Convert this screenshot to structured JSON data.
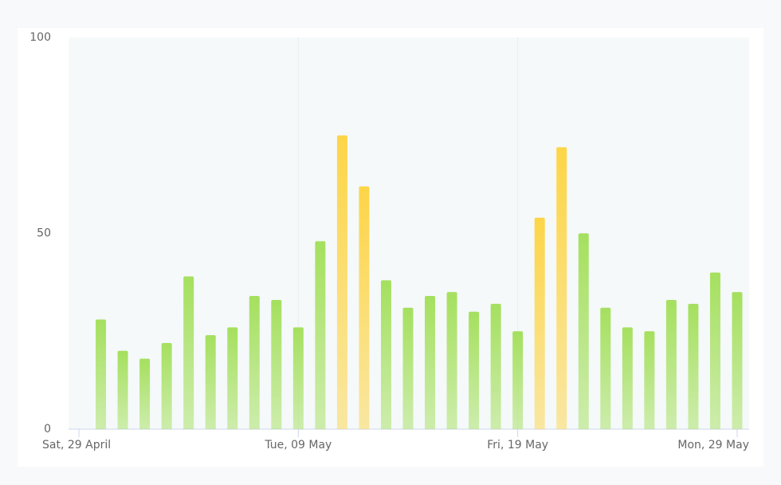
{
  "chart_data": {
    "type": "bar",
    "x": [
      "04-30",
      "05-01",
      "05-02",
      "05-03",
      "05-04",
      "05-05",
      "05-06",
      "05-07",
      "05-08",
      "05-09",
      "05-10",
      "05-11",
      "05-12",
      "05-13",
      "05-14",
      "05-15",
      "05-16",
      "05-17",
      "05-18",
      "05-19",
      "05-20",
      "05-21",
      "05-22",
      "05-23",
      "05-24",
      "05-25",
      "05-26",
      "05-27",
      "05-28",
      "05-29"
    ],
    "values": [
      28,
      20,
      18,
      22,
      39,
      24,
      26,
      34,
      33,
      26,
      48,
      75,
      62,
      38,
      31,
      34,
      35,
      30,
      32,
      25,
      54,
      72,
      50,
      31,
      26,
      25,
      33,
      32,
      40,
      35
    ],
    "colors": [
      "#a5e05e",
      "#a5e05e",
      "#a5e05e",
      "#a5e05e",
      "#a5e05e",
      "#a5e05e",
      "#a5e05e",
      "#a5e05e",
      "#a5e05e",
      "#a5e05e",
      "#a5e05e",
      "#fdd548",
      "#fdd548",
      "#a5e05e",
      "#a5e05e",
      "#a5e05e",
      "#a5e05e",
      "#a5e05e",
      "#a5e05e",
      "#a5e05e",
      "#fdd548",
      "#fdd548",
      "#a5e05e",
      "#a5e05e",
      "#a5e05e",
      "#a5e05e",
      "#a5e05e",
      "#a5e05e",
      "#a5e05e",
      "#a5e05e"
    ],
    "xlim": [
      "04-29",
      "05-29"
    ],
    "xticks": [
      {
        "value": "04-29",
        "label": "Sat, 29 April"
      },
      {
        "value": "05-09",
        "label": "Tue, 09 May"
      },
      {
        "value": "05-19",
        "label": "Fri, 19 May"
      },
      {
        "value": "05-29",
        "label": "Mon, 29 May"
      }
    ],
    "ylim": [
      0,
      100
    ],
    "yticks": [
      0,
      50,
      100
    ],
    "xgrid": true
  }
}
